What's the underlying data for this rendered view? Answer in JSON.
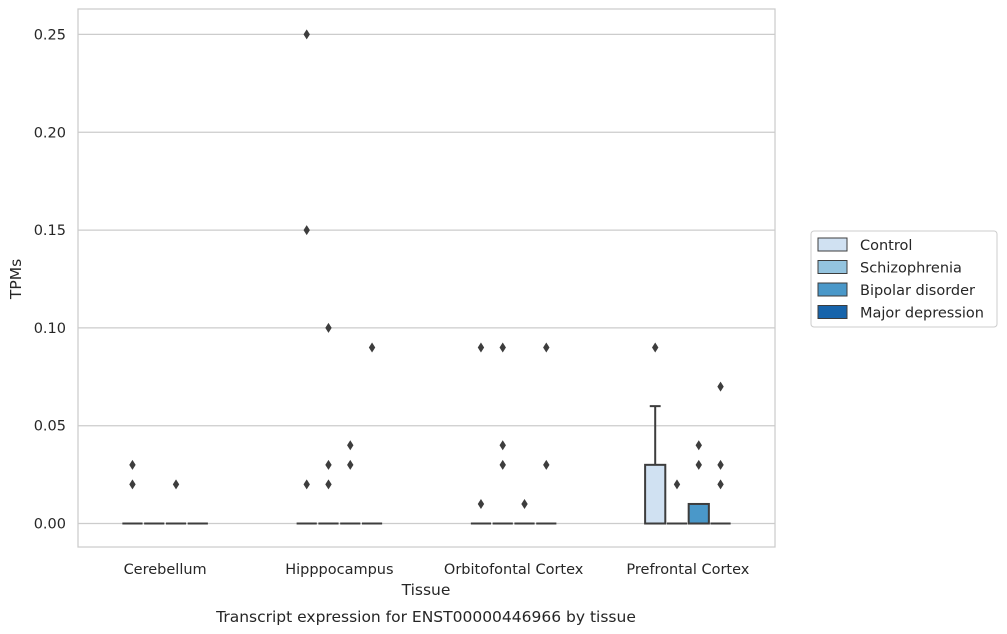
{
  "chart_data": {
    "type": "boxplot",
    "caption": "Transcript expression for ENST00000446966 by tissue",
    "xlabel": "Tissue",
    "ylabel": "TPMs",
    "ylim": [
      -0.012,
      0.263
    ],
    "yticks": [
      "0.00",
      "0.05",
      "0.10",
      "0.15",
      "0.20",
      "0.25"
    ],
    "ytick_values": [
      0,
      0.05,
      0.1,
      0.15,
      0.2,
      0.25
    ],
    "grid": "horizontal",
    "legend_position": "right",
    "categories": [
      "Cerebellum",
      "Hipppocampus",
      "Orbitofontal Cortex",
      "Prefrontal Cortex"
    ],
    "series": [
      {
        "name": "Control",
        "color": "#d0e1f2",
        "boxes": [
          {
            "q1": 0,
            "median": 0,
            "q3": 0,
            "whisker_low": 0,
            "whisker_high": 0,
            "outliers": [
              0.03,
              0.02
            ]
          },
          {
            "q1": 0,
            "median": 0,
            "q3": 0,
            "whisker_low": 0,
            "whisker_high": 0,
            "outliers": [
              0.25,
              0.15,
              0.02
            ]
          },
          {
            "q1": 0,
            "median": 0,
            "q3": 0,
            "whisker_low": 0,
            "whisker_high": 0,
            "outliers": [
              0.09,
              0.01
            ]
          },
          {
            "q1": 0,
            "median": 0,
            "q3": 0.03,
            "whisker_low": 0,
            "whisker_high": 0.06,
            "outliers": [
              0.09
            ]
          }
        ]
      },
      {
        "name": "Schizophrenia",
        "color": "#94c4df",
        "boxes": [
          {
            "q1": 0,
            "median": 0,
            "q3": 0,
            "whisker_low": 0,
            "whisker_high": 0,
            "outliers": []
          },
          {
            "q1": 0,
            "median": 0,
            "q3": 0,
            "whisker_low": 0,
            "whisker_high": 0,
            "outliers": [
              0.1,
              0.03,
              0.02
            ]
          },
          {
            "q1": 0,
            "median": 0,
            "q3": 0,
            "whisker_low": 0,
            "whisker_high": 0,
            "outliers": [
              0.09,
              0.04,
              0.03
            ]
          },
          {
            "q1": 0,
            "median": 0,
            "q3": 0,
            "whisker_low": 0,
            "whisker_high": 0,
            "outliers": [
              0.02
            ]
          }
        ]
      },
      {
        "name": "Bipolar disorder",
        "color": "#4a98c9",
        "boxes": [
          {
            "q1": 0,
            "median": 0,
            "q3": 0,
            "whisker_low": 0,
            "whisker_high": 0,
            "outliers": [
              0.02
            ]
          },
          {
            "q1": 0,
            "median": 0,
            "q3": 0,
            "whisker_low": 0,
            "whisker_high": 0,
            "outliers": [
              0.04,
              0.03
            ]
          },
          {
            "q1": 0,
            "median": 0,
            "q3": 0,
            "whisker_low": 0,
            "whisker_high": 0,
            "outliers": [
              0.01
            ]
          },
          {
            "q1": 0,
            "median": 0,
            "q3": 0.01,
            "whisker_low": 0,
            "whisker_high": 0.01,
            "outliers": [
              0.04,
              0.03
            ]
          }
        ]
      },
      {
        "name": "Major depression",
        "color": "#1764ab",
        "boxes": [
          {
            "q1": 0,
            "median": 0,
            "q3": 0,
            "whisker_low": 0,
            "whisker_high": 0,
            "outliers": []
          },
          {
            "q1": 0,
            "median": 0,
            "q3": 0,
            "whisker_low": 0,
            "whisker_high": 0,
            "outliers": [
              0.09
            ]
          },
          {
            "q1": 0,
            "median": 0,
            "q3": 0,
            "whisker_low": 0,
            "whisker_high": 0,
            "outliers": [
              0.09,
              0.03
            ]
          },
          {
            "q1": 0,
            "median": 0,
            "q3": 0,
            "whisker_low": 0,
            "whisker_high": 0,
            "outliers": [
              0.07,
              0.03,
              0.02
            ]
          }
        ]
      }
    ]
  }
}
